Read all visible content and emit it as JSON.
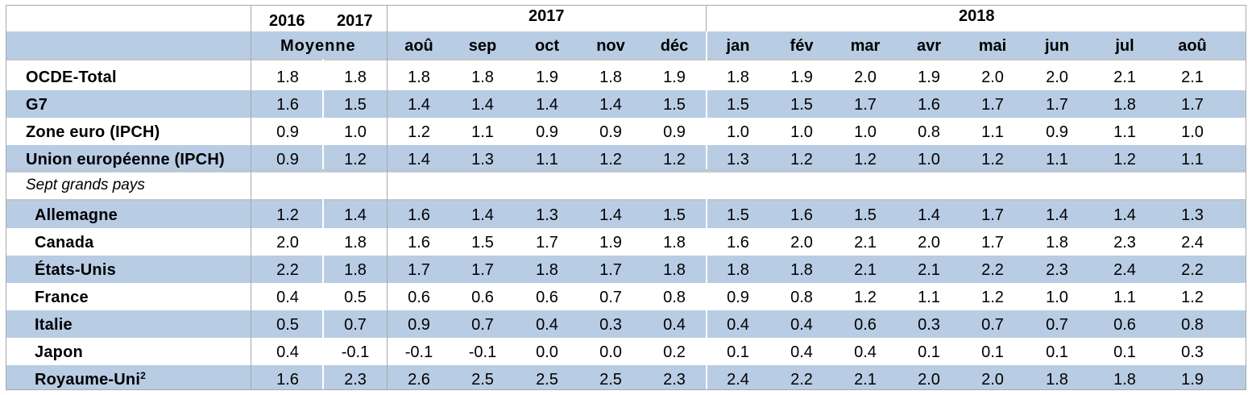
{
  "header": {
    "avg_years": [
      "2016",
      "2017"
    ],
    "avg_label": "Moyenne",
    "year_2017": "2017",
    "year_2018": "2018",
    "months": [
      "aoû",
      "sep",
      "oct",
      "nov",
      "déc",
      "jan",
      "fév",
      "mar",
      "avr",
      "mai",
      "jun",
      "jul",
      "aoû"
    ]
  },
  "chart_data": {
    "type": "table",
    "columns": [
      "2016",
      "2017",
      "aoû",
      "sep",
      "oct",
      "nov",
      "déc",
      "jan",
      "fév",
      "mar",
      "avr",
      "mai",
      "jun",
      "jul",
      "aoû"
    ],
    "rows": [
      {
        "label": "OCDE-Total",
        "values": [
          "1.8",
          "1.8",
          "1.8",
          "1.8",
          "1.9",
          "1.8",
          "1.9",
          "1.8",
          "1.9",
          "2.0",
          "1.9",
          "2.0",
          "2.0",
          "2.1",
          "2.1"
        ]
      },
      {
        "label": "G7",
        "values": [
          "1.6",
          "1.5",
          "1.4",
          "1.4",
          "1.4",
          "1.4",
          "1.5",
          "1.5",
          "1.5",
          "1.7",
          "1.6",
          "1.7",
          "1.7",
          "1.8",
          "1.7"
        ]
      },
      {
        "label": "Zone euro (IPCH)",
        "values": [
          "0.9",
          "1.0",
          "1.2",
          "1.1",
          "0.9",
          "0.9",
          "0.9",
          "1.0",
          "1.0",
          "1.0",
          "0.8",
          "1.1",
          "0.9",
          "1.1",
          "1.0"
        ]
      },
      {
        "label": "Union européenne (IPCH)",
        "values": [
          "0.9",
          "1.2",
          "1.4",
          "1.3",
          "1.1",
          "1.2",
          "1.2",
          "1.3",
          "1.2",
          "1.2",
          "1.0",
          "1.2",
          "1.1",
          "1.2",
          "1.1"
        ]
      }
    ],
    "section_label": "Sept grands pays",
    "countries": [
      {
        "label": "Allemagne",
        "sup": "",
        "values": [
          "1.2",
          "1.4",
          "1.6",
          "1.4",
          "1.3",
          "1.4",
          "1.5",
          "1.5",
          "1.6",
          "1.5",
          "1.4",
          "1.7",
          "1.4",
          "1.4",
          "1.3"
        ]
      },
      {
        "label": "Canada",
        "sup": "",
        "values": [
          "2.0",
          "1.8",
          "1.6",
          "1.5",
          "1.7",
          "1.9",
          "1.8",
          "1.6",
          "2.0",
          "2.1",
          "2.0",
          "1.7",
          "1.8",
          "2.3",
          "2.4"
        ]
      },
      {
        "label": "États-Unis",
        "sup": "",
        "values": [
          "2.2",
          "1.8",
          "1.7",
          "1.7",
          "1.8",
          "1.7",
          "1.8",
          "1.8",
          "1.8",
          "2.1",
          "2.1",
          "2.2",
          "2.3",
          "2.4",
          "2.2"
        ]
      },
      {
        "label": "France",
        "sup": "",
        "values": [
          "0.4",
          "0.5",
          "0.6",
          "0.6",
          "0.6",
          "0.7",
          "0.8",
          "0.9",
          "0.8",
          "1.2",
          "1.1",
          "1.2",
          "1.0",
          "1.1",
          "1.2"
        ]
      },
      {
        "label": "Italie",
        "sup": "",
        "values": [
          "0.5",
          "0.7",
          "0.9",
          "0.7",
          "0.4",
          "0.3",
          "0.4",
          "0.4",
          "0.4",
          "0.6",
          "0.3",
          "0.7",
          "0.7",
          "0.6",
          "0.8"
        ]
      },
      {
        "label": "Japon",
        "sup": "",
        "values": [
          "0.4",
          "-0.1",
          "-0.1",
          "-0.1",
          "0.0",
          "0.0",
          "0.2",
          "0.1",
          "0.4",
          "0.4",
          "0.1",
          "0.1",
          "0.1",
          "0.1",
          "0.3"
        ]
      },
      {
        "label": "Royaume-Uni",
        "sup": "2",
        "values": [
          "1.6",
          "2.3",
          "2.6",
          "2.5",
          "2.5",
          "2.5",
          "2.3",
          "2.4",
          "2.2",
          "2.1",
          "2.0",
          "2.0",
          "1.8",
          "1.8",
          "1.9"
        ]
      }
    ]
  }
}
